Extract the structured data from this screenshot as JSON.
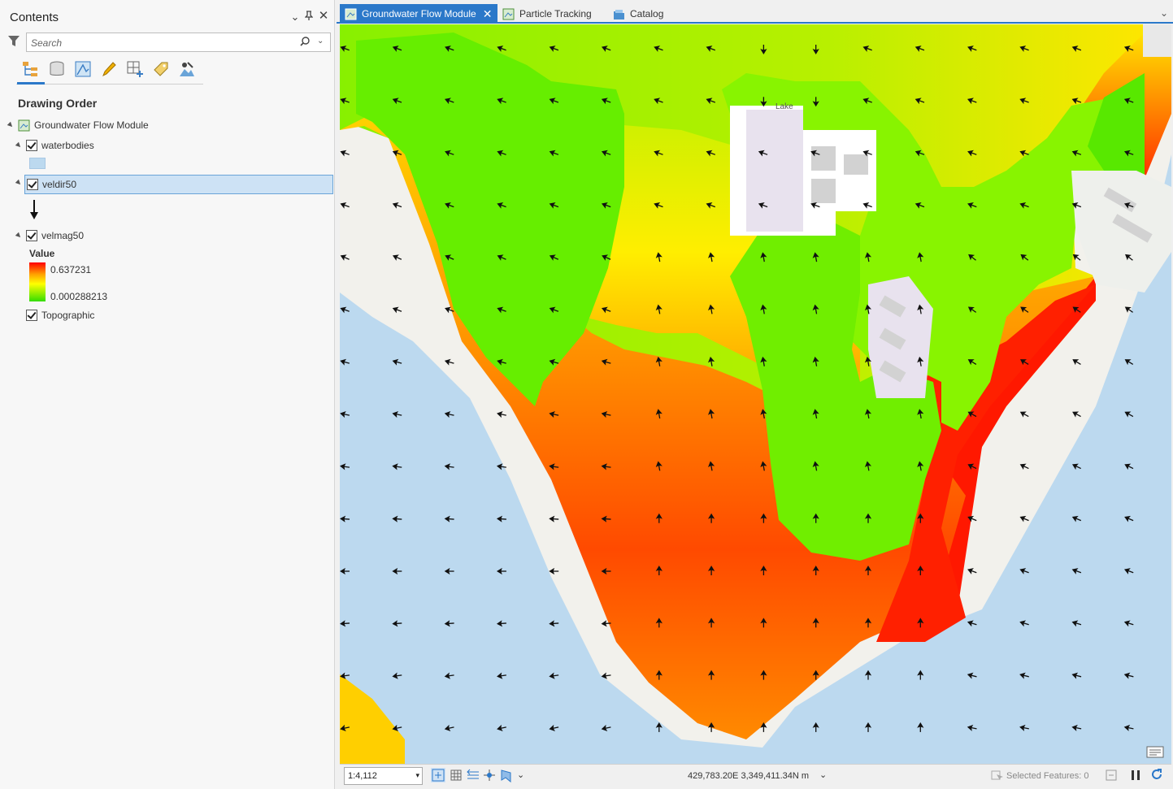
{
  "contents": {
    "title": "Contents",
    "search_placeholder": "Search",
    "section_title": "Drawing Order",
    "map_item": "Groundwater Flow Module",
    "layers": [
      {
        "name": "waterbodies",
        "checked": true
      },
      {
        "name": "veldir50",
        "checked": true,
        "selected": true
      },
      {
        "name": "velmag50",
        "checked": true
      },
      {
        "name": "Topographic",
        "checked": true
      }
    ],
    "legend": {
      "heading": "Value",
      "high": "0.637231",
      "low": "0.000288213",
      "high_color": "#ff0000",
      "mid_color": "#ffff00",
      "low_color": "#33dd00"
    },
    "toolbar_icons": [
      "list-by-drawing-order-icon",
      "list-by-source-icon",
      "list-by-selection-icon",
      "list-by-editing-icon",
      "list-by-snapping-icon",
      "list-by-labeling-icon",
      "list-by-perspective-imagery-icon"
    ]
  },
  "tabs": [
    {
      "label": "Groundwater Flow Module",
      "active": true
    },
    {
      "label": "Particle Tracking",
      "active": false
    },
    {
      "label": "Catalog",
      "active": false
    }
  ],
  "map": {
    "place_label": "Lake"
  },
  "status": {
    "scale": "1:4,112",
    "coordinates": "429,783.20E 3,349,411.34N m",
    "selected_features": "Selected Features: 0"
  },
  "colors": {
    "accent": "#2b78c9",
    "water": "#bcd9ef",
    "selection": "#cde2f5"
  }
}
